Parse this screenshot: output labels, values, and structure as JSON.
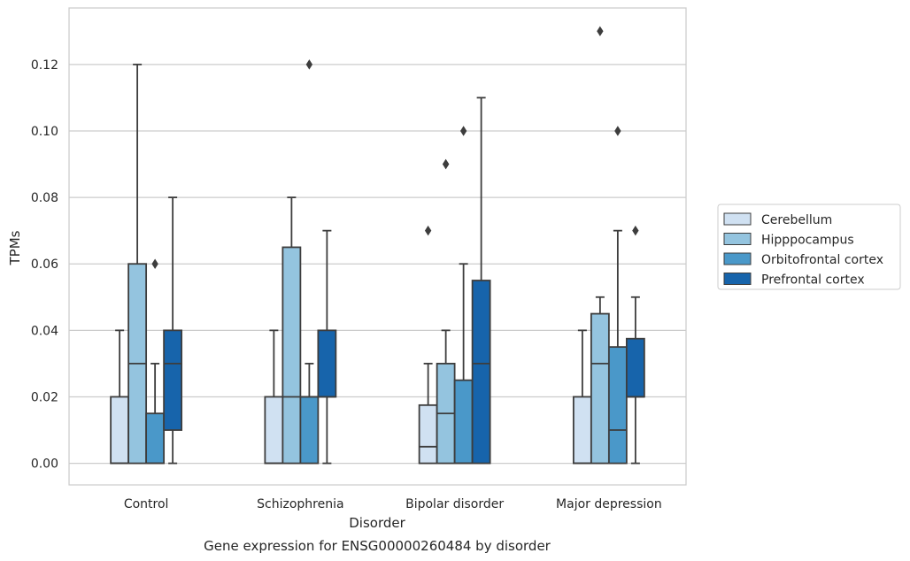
{
  "chart_data": {
    "type": "box",
    "title": "",
    "caption": "Gene expression for ENSG00000260484 by disorder",
    "xlabel": "Disorder",
    "ylabel": "TPMs",
    "ylim": [
      -0.0065,
      0.137
    ],
    "yticks": [
      "0.00",
      "0.02",
      "0.04",
      "0.06",
      "0.08",
      "0.10",
      "0.12"
    ],
    "ytick_values": [
      0.0,
      0.02,
      0.04,
      0.06,
      0.08,
      0.1,
      0.12
    ],
    "grid": "horizontal",
    "legend_position": "right",
    "categories": [
      "Control",
      "Schizophrenia",
      "Bipolar disorder",
      "Major depression"
    ],
    "series": [
      {
        "name": "Cerebellum",
        "color": "#d0e1f2",
        "boxes": [
          {
            "whislo": 0.0,
            "q1": 0.0,
            "med": 0.0,
            "q3": 0.02,
            "whishi": 0.04,
            "fliers": []
          },
          {
            "whislo": 0.0,
            "q1": 0.0,
            "med": 0.0,
            "q3": 0.02,
            "whishi": 0.04,
            "fliers": []
          },
          {
            "whislo": 0.0,
            "q1": 0.0,
            "med": 0.005,
            "q3": 0.0175,
            "whishi": 0.03,
            "fliers": [
              0.07
            ]
          },
          {
            "whislo": 0.0,
            "q1": 0.0,
            "med": 0.0,
            "q3": 0.02,
            "whishi": 0.04,
            "fliers": []
          }
        ]
      },
      {
        "name": "Hipppocampus",
        "color": "#94c4df",
        "boxes": [
          {
            "whislo": 0.0,
            "q1": 0.0,
            "med": 0.03,
            "q3": 0.06,
            "whishi": 0.12,
            "fliers": []
          },
          {
            "whislo": 0.0,
            "q1": 0.0,
            "med": 0.02,
            "q3": 0.065,
            "whishi": 0.08,
            "fliers": []
          },
          {
            "whislo": 0.0,
            "q1": 0.0,
            "med": 0.015,
            "q3": 0.03,
            "whishi": 0.04,
            "fliers": [
              0.09,
              0.09
            ]
          },
          {
            "whislo": 0.0,
            "q1": 0.0,
            "med": 0.03,
            "q3": 0.045,
            "whishi": 0.05,
            "fliers": [
              0.13
            ]
          }
        ]
      },
      {
        "name": "Orbitofrontal cortex",
        "color": "#4a98c9",
        "boxes": [
          {
            "whislo": 0.0,
            "q1": 0.0,
            "med": 0.0,
            "q3": 0.015,
            "whishi": 0.03,
            "fliers": [
              0.06
            ]
          },
          {
            "whislo": 0.0,
            "q1": 0.0,
            "med": 0.02,
            "q3": 0.02,
            "whishi": 0.03,
            "fliers": [
              0.12
            ]
          },
          {
            "whislo": 0.0,
            "q1": 0.0,
            "med": 0.0,
            "q3": 0.025,
            "whishi": 0.06,
            "fliers": [
              0.1
            ]
          },
          {
            "whislo": 0.0,
            "q1": 0.0,
            "med": 0.01,
            "q3": 0.035,
            "whishi": 0.07,
            "fliers": [
              0.1
            ]
          }
        ]
      },
      {
        "name": "Prefrontal cortex",
        "color": "#1764ab",
        "boxes": [
          {
            "whislo": 0.0,
            "q1": 0.01,
            "med": 0.03,
            "q3": 0.04,
            "whishi": 0.08,
            "fliers": []
          },
          {
            "whislo": 0.0,
            "q1": 0.02,
            "med": 0.02,
            "q3": 0.04,
            "whishi": 0.07,
            "fliers": []
          },
          {
            "whislo": 0.0,
            "q1": 0.0,
            "med": 0.03,
            "q3": 0.055,
            "whishi": 0.11,
            "fliers": []
          },
          {
            "whislo": 0.0,
            "q1": 0.02,
            "med": 0.02,
            "q3": 0.0375,
            "whishi": 0.05,
            "fliers": [
              0.07
            ]
          }
        ]
      }
    ]
  }
}
